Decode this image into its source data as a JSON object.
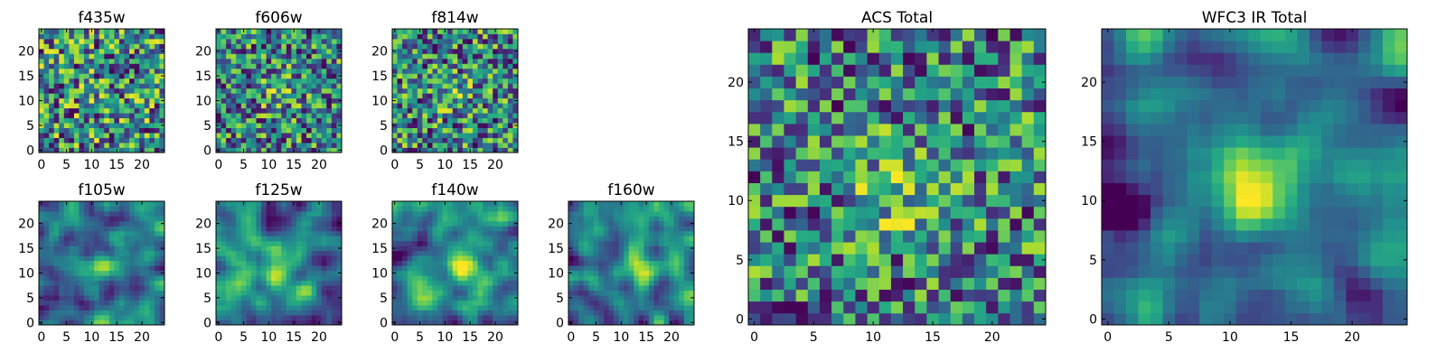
{
  "figure": {
    "description_colormap": "viridis",
    "colors": {
      "low": "#440154",
      "mid": "#21918c",
      "high": "#fde725"
    }
  },
  "chart_data": [
    {
      "type": "heatmap",
      "title": "f435w",
      "grid": [
        25,
        25
      ],
      "xlim": [
        0,
        24
      ],
      "ylim": [
        0,
        24
      ],
      "xticks": [
        0,
        5,
        10,
        15,
        20
      ],
      "yticks": [
        0,
        5,
        10,
        15,
        20
      ],
      "xlabel": "",
      "ylabel": "",
      "texture": "noise",
      "source_peak": [
        12,
        11
      ],
      "source_strength": 0.05,
      "seed": 11
    },
    {
      "type": "heatmap",
      "title": "f606w",
      "grid": [
        25,
        25
      ],
      "xlim": [
        0,
        24
      ],
      "ylim": [
        0,
        24
      ],
      "xticks": [
        0,
        5,
        10,
        15,
        20
      ],
      "yticks": [
        0,
        5,
        10,
        15,
        20
      ],
      "xlabel": "",
      "ylabel": "",
      "texture": "noise",
      "source_peak": [
        12,
        12
      ],
      "source_strength": 0.25,
      "seed": 23
    },
    {
      "type": "heatmap",
      "title": "f814w",
      "grid": [
        25,
        25
      ],
      "xlim": [
        0,
        24
      ],
      "ylim": [
        0,
        24
      ],
      "xticks": [
        0,
        5,
        10,
        15,
        20
      ],
      "yticks": [
        0,
        5,
        10,
        15,
        20
      ],
      "xlabel": "",
      "ylabel": "",
      "texture": "noise",
      "source_peak": [
        12,
        11
      ],
      "source_strength": 0.2,
      "seed": 37
    },
    {
      "type": "heatmap",
      "title": "f105w",
      "grid": [
        25,
        25
      ],
      "xlim": [
        0,
        24
      ],
      "ylim": [
        0,
        24
      ],
      "xticks": [
        0,
        5,
        10,
        15,
        20
      ],
      "yticks": [
        0,
        5,
        10,
        15,
        20
      ],
      "xlabel": "",
      "ylabel": "",
      "texture": "smooth",
      "source_peak": [
        13,
        11
      ],
      "source_strength": 0.45,
      "seed": 41
    },
    {
      "type": "heatmap",
      "title": "f125w",
      "grid": [
        25,
        25
      ],
      "xlim": [
        0,
        24
      ],
      "ylim": [
        0,
        24
      ],
      "xticks": [
        0,
        5,
        10,
        15,
        20
      ],
      "yticks": [
        0,
        5,
        10,
        15,
        20
      ],
      "xlabel": "",
      "ylabel": "",
      "texture": "smooth",
      "source_peak": [
        12,
        10
      ],
      "source_strength": 0.4,
      "seed": 53
    },
    {
      "type": "heatmap",
      "title": "f140w",
      "grid": [
        25,
        25
      ],
      "xlim": [
        0,
        24
      ],
      "ylim": [
        0,
        24
      ],
      "xticks": [
        0,
        5,
        10,
        15,
        20
      ],
      "yticks": [
        0,
        5,
        10,
        15,
        20
      ],
      "xlabel": "",
      "ylabel": "",
      "texture": "smooth",
      "source_peak": [
        14,
        12
      ],
      "source_strength": 0.4,
      "seed": 67
    },
    {
      "type": "heatmap",
      "title": "f160w",
      "grid": [
        25,
        25
      ],
      "xlim": [
        0,
        24
      ],
      "ylim": [
        0,
        24
      ],
      "xticks": [
        0,
        5,
        10,
        15,
        20
      ],
      "yticks": [
        0,
        5,
        10,
        15,
        20
      ],
      "xlabel": "",
      "ylabel": "",
      "texture": "smooth",
      "source_peak": [
        14,
        12
      ],
      "source_strength": 0.5,
      "seed": 79
    },
    {
      "type": "heatmap",
      "title": "ACS Total",
      "grid": [
        25,
        25
      ],
      "xlim": [
        0,
        24
      ],
      "ylim": [
        0,
        24
      ],
      "xticks": [
        0,
        5,
        10,
        15,
        20
      ],
      "yticks": [
        0,
        5,
        10,
        15,
        20
      ],
      "xlabel": "",
      "ylabel": "",
      "texture": "noise",
      "source_peak": [
        12,
        11
      ],
      "source_strength": 0.3,
      "seed": 97
    },
    {
      "type": "heatmap",
      "title": "WFC3 IR Total",
      "grid": [
        25,
        25
      ],
      "xlim": [
        0,
        24
      ],
      "ylim": [
        0,
        24
      ],
      "xticks": [
        0,
        5,
        10,
        15,
        20
      ],
      "yticks": [
        0,
        5,
        10,
        15,
        20
      ],
      "xlabel": "",
      "ylabel": "",
      "texture": "smooth",
      "source_peak": [
        12,
        11
      ],
      "source_strength": 0.55,
      "dark_region": [
        1,
        9
      ],
      "seed": 113
    }
  ]
}
